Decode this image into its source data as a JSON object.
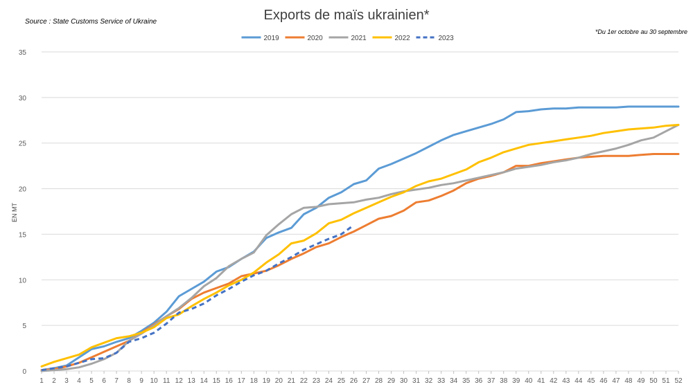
{
  "chart_data": {
    "type": "line",
    "title": "Exports de maïs ukrainien*",
    "source": "Source : State Customs Service of Ukraine",
    "note": "*Du 1er octobre au 30 septembre",
    "ylabel": "EN MT",
    "xlabel": "",
    "ylim": [
      0,
      35
    ],
    "yticks": [
      0,
      5,
      10,
      15,
      20,
      25,
      30,
      35
    ],
    "grid": true,
    "legend_position": "top-center",
    "categories": [
      1,
      2,
      3,
      4,
      5,
      6,
      7,
      8,
      9,
      10,
      11,
      12,
      13,
      14,
      15,
      16,
      17,
      18,
      19,
      20,
      21,
      22,
      23,
      24,
      25,
      26,
      27,
      28,
      29,
      30,
      31,
      32,
      33,
      34,
      35,
      36,
      37,
      38,
      39,
      40,
      41,
      42,
      43,
      44,
      45,
      46,
      47,
      48,
      49,
      50,
      51,
      52
    ],
    "series": [
      {
        "name": "2019",
        "color": "#5b9bd5",
        "dash": "solid",
        "values": [
          0.1,
          0.3,
          0.6,
          1.5,
          2.4,
          2.7,
          3.2,
          3.6,
          4.4,
          5.3,
          6.5,
          8.2,
          9.0,
          9.8,
          10.9,
          11.4,
          12.3,
          13.1,
          14.6,
          15.2,
          15.7,
          17.2,
          17.9,
          19.0,
          19.6,
          20.5,
          20.9,
          22.2,
          22.7,
          23.3,
          23.9,
          24.6,
          25.3,
          25.9,
          26.3,
          26.7,
          27.1,
          27.6,
          28.4,
          28.5,
          28.7,
          28.8,
          28.8,
          28.9,
          28.9,
          28.9,
          28.9,
          29.0,
          29.0,
          29.0,
          29.0,
          29.0
        ]
      },
      {
        "name": "2020",
        "color": "#ed7d31",
        "dash": "solid",
        "values": [
          0.1,
          0.2,
          0.5,
          0.9,
          1.5,
          2.1,
          2.7,
          3.3,
          4.2,
          5.1,
          6.0,
          6.8,
          7.9,
          8.6,
          9.1,
          9.6,
          10.4,
          10.7,
          11.0,
          11.6,
          12.3,
          12.9,
          13.6,
          14.0,
          14.7,
          15.3,
          16.0,
          16.7,
          17.0,
          17.6,
          18.5,
          18.7,
          19.2,
          19.8,
          20.6,
          21.1,
          21.4,
          21.8,
          22.5,
          22.5,
          22.8,
          23.0,
          23.2,
          23.4,
          23.5,
          23.6,
          23.6,
          23.6,
          23.7,
          23.8,
          23.8,
          23.8
        ]
      },
      {
        "name": "2021",
        "color": "#a5a5a5",
        "dash": "solid",
        "values": [
          0.0,
          0.1,
          0.2,
          0.4,
          0.8,
          1.3,
          2.0,
          3.3,
          4.1,
          5.0,
          6.0,
          6.9,
          8.0,
          9.3,
          10.2,
          11.5,
          12.3,
          13.0,
          14.9,
          16.1,
          17.2,
          17.9,
          18.0,
          18.3,
          18.4,
          18.5,
          18.8,
          19.0,
          19.4,
          19.7,
          19.9,
          20.1,
          20.4,
          20.6,
          20.9,
          21.2,
          21.5,
          21.8,
          22.2,
          22.4,
          22.6,
          22.9,
          23.1,
          23.4,
          23.8,
          24.1,
          24.4,
          24.8,
          25.3,
          25.6,
          26.3,
          27.0
        ]
      },
      {
        "name": "2022",
        "color": "#ffc000",
        "dash": "solid",
        "values": [
          0.5,
          1.0,
          1.4,
          1.8,
          2.6,
          3.1,
          3.6,
          3.8,
          4.2,
          4.8,
          5.8,
          6.2,
          7.1,
          7.9,
          8.6,
          9.4,
          10.0,
          10.8,
          11.9,
          12.8,
          14.0,
          14.3,
          15.1,
          16.2,
          16.6,
          17.3,
          17.9,
          18.5,
          19.1,
          19.6,
          20.3,
          20.8,
          21.1,
          21.6,
          22.1,
          22.9,
          23.4,
          24.0,
          24.4,
          24.8,
          25.0,
          25.2,
          25.4,
          25.6,
          25.8,
          26.1,
          26.3,
          26.5,
          26.6,
          26.7,
          26.9,
          27.0
        ]
      },
      {
        "name": "2023",
        "color": "#4472c4",
        "dash": "dashed",
        "values": [
          0.1,
          0.3,
          0.5,
          0.9,
          1.3,
          1.4,
          2.0,
          3.2,
          3.6,
          4.2,
          5.2,
          6.4,
          6.8,
          7.4,
          8.3,
          9.0,
          9.8,
          10.5,
          11.0,
          11.8,
          12.5,
          13.3,
          13.9,
          14.5,
          15.0,
          16.0,
          null,
          null,
          null,
          null,
          null,
          null,
          null,
          null,
          null,
          null,
          null,
          null,
          null,
          null,
          null,
          null,
          null,
          null,
          null,
          null,
          null,
          null,
          null,
          null,
          null,
          null
        ]
      }
    ]
  }
}
